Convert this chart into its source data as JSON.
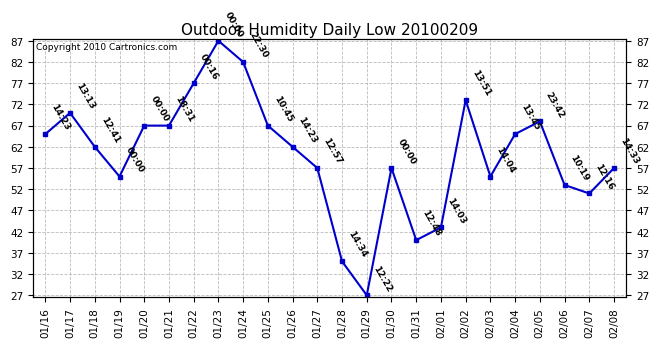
{
  "title": "Outdoor Humidity Daily Low 20100209",
  "copyright": "Copyright 2010 Cartronics.com",
  "dates": [
    "01/16",
    "01/17",
    "01/18",
    "01/19",
    "01/20",
    "01/21",
    "01/22",
    "01/23",
    "01/24",
    "01/25",
    "01/26",
    "01/27",
    "01/28",
    "01/29",
    "01/30",
    "01/31",
    "02/01",
    "02/02",
    "02/03",
    "02/04",
    "02/05",
    "02/06",
    "02/07",
    "02/08"
  ],
  "values": [
    65,
    70,
    62,
    55,
    67,
    67,
    77,
    87,
    82,
    67,
    62,
    57,
    35,
    27,
    57,
    40,
    43,
    73,
    55,
    65,
    68,
    53,
    51,
    57
  ],
  "times": [
    "14:23",
    "13:13",
    "12:41",
    "00:00",
    "00:00",
    "18:31",
    "00:16",
    "00:00",
    "22:30",
    "10:45",
    "14:23",
    "12:57",
    "14:34",
    "12:22",
    "00:00",
    "12:48",
    "14:03",
    "13:51",
    "14:04",
    "13:45",
    "23:42",
    "10:19",
    "12:16",
    "14:33"
  ],
  "ylim_min": 27,
  "ylim_max": 87,
  "yticks": [
    27,
    32,
    37,
    42,
    47,
    52,
    57,
    62,
    67,
    72,
    77,
    82,
    87
  ],
  "line_color": "#0000cc",
  "marker_color": "#0000cc",
  "bg_color": "#ffffff",
  "plot_bg_color": "#ffffff",
  "grid_color": "#bbbbbb",
  "title_fontsize": 11,
  "label_fontsize": 6.5,
  "tick_fontsize": 7.5,
  "copyright_fontsize": 6.5
}
